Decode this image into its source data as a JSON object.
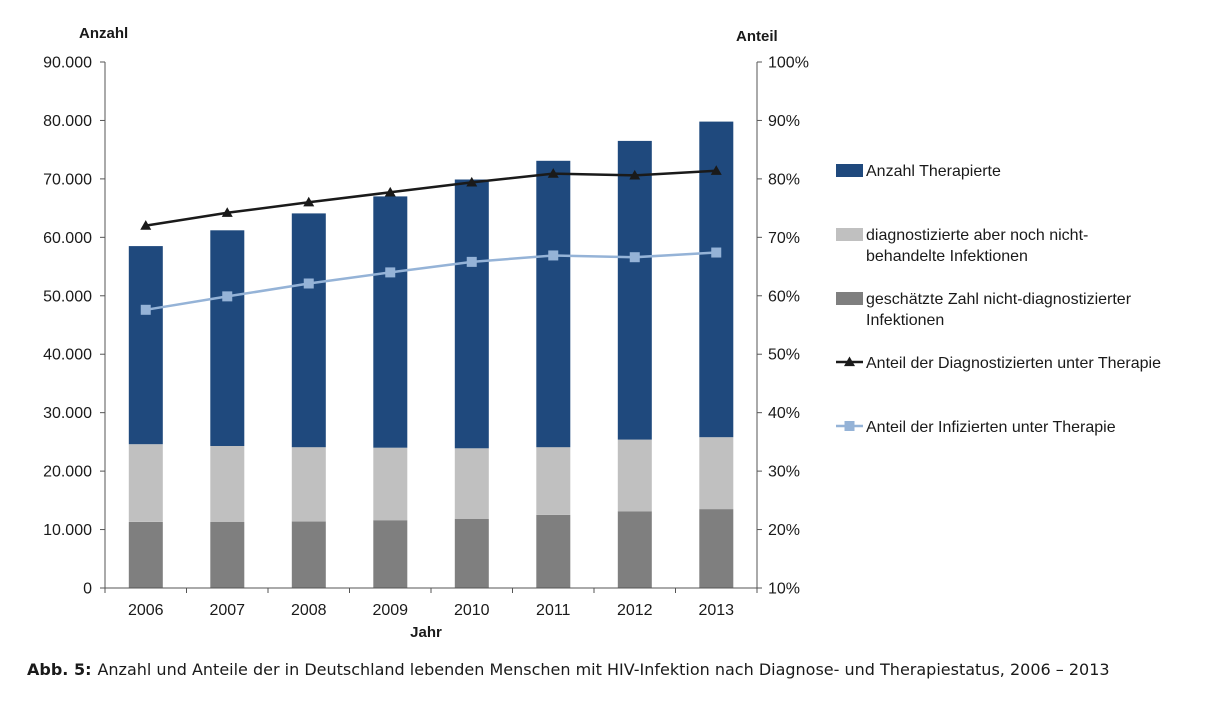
{
  "chart_data": {
    "type": "bar",
    "stacked": true,
    "categories": [
      "2006",
      "2007",
      "2008",
      "2009",
      "2010",
      "2011",
      "2012",
      "2013"
    ],
    "series": [
      {
        "name": "geschätzte Zahl nicht-diagnostizierter Infektionen",
        "type": "bar",
        "axis": "left",
        "color": "#7f7f7f",
        "values": [
          11300,
          11300,
          11400,
          11600,
          11800,
          12500,
          13100,
          13500
        ]
      },
      {
        "name": "diagnostizierte aber noch nicht-behandelte Infektionen",
        "type": "bar",
        "axis": "left",
        "color": "#c0c0c0",
        "values": [
          13300,
          13000,
          12700,
          12400,
          12100,
          11600,
          12300,
          12300
        ]
      },
      {
        "name": "Anzahl Therapierte",
        "type": "bar",
        "axis": "left",
        "color": "#1f497d",
        "values": [
          33900,
          36900,
          40000,
          43000,
          46000,
          49000,
          51100,
          54000
        ]
      },
      {
        "name": "Anteil der Diagnostizierten unter Therapie",
        "type": "line",
        "axis": "right",
        "color": "#1a1a1a",
        "marker": "triangle",
        "values": [
          72.0,
          74.2,
          76.0,
          77.7,
          79.4,
          80.9,
          80.6,
          81.4
        ]
      },
      {
        "name": "Anteil der Infizierten unter Therapie",
        "type": "line",
        "axis": "right",
        "color": "#95b3d7",
        "marker": "square",
        "values": [
          57.6,
          59.9,
          62.1,
          64.0,
          65.8,
          66.9,
          66.6,
          67.4
        ]
      }
    ],
    "legend_order": [
      2,
      1,
      0,
      3,
      4
    ],
    "legend_labels": [
      [
        "Anzahl Therapierte"
      ],
      [
        "diagnostizierte aber noch nicht-",
        "behandelte Infektionen"
      ],
      [
        "geschätzte Zahl nicht-diagnostizierter",
        "Infektionen"
      ],
      [
        "Anteil der Diagnostizierten unter Therapie"
      ],
      [
        "Anteil der Infizierten unter Therapie"
      ]
    ],
    "left_axis": {
      "title": "Anzahl",
      "min": 0,
      "max": 90000,
      "step": 10000,
      "tick_labels": [
        "0",
        "10.000",
        "20.000",
        "30.000",
        "40.000",
        "50.000",
        "60.000",
        "70.000",
        "80.000",
        "90.000"
      ]
    },
    "right_axis": {
      "title": "Anteil",
      "min": 10,
      "max": 100,
      "step": 10,
      "tick_labels": [
        "10%",
        "20%",
        "30%",
        "40%",
        "50%",
        "60%",
        "70%",
        "80%",
        "90%",
        "100%"
      ]
    },
    "xlabel": "Jahr",
    "grid": false,
    "legend_position": "right"
  },
  "caption": {
    "label": "Abb. 5:",
    "text": "Anzahl und Anteile der in Deutschland lebenden Menschen mit HIV-Infektion nach Diagnose- und Therapiestatus, 2006 – 2013"
  }
}
